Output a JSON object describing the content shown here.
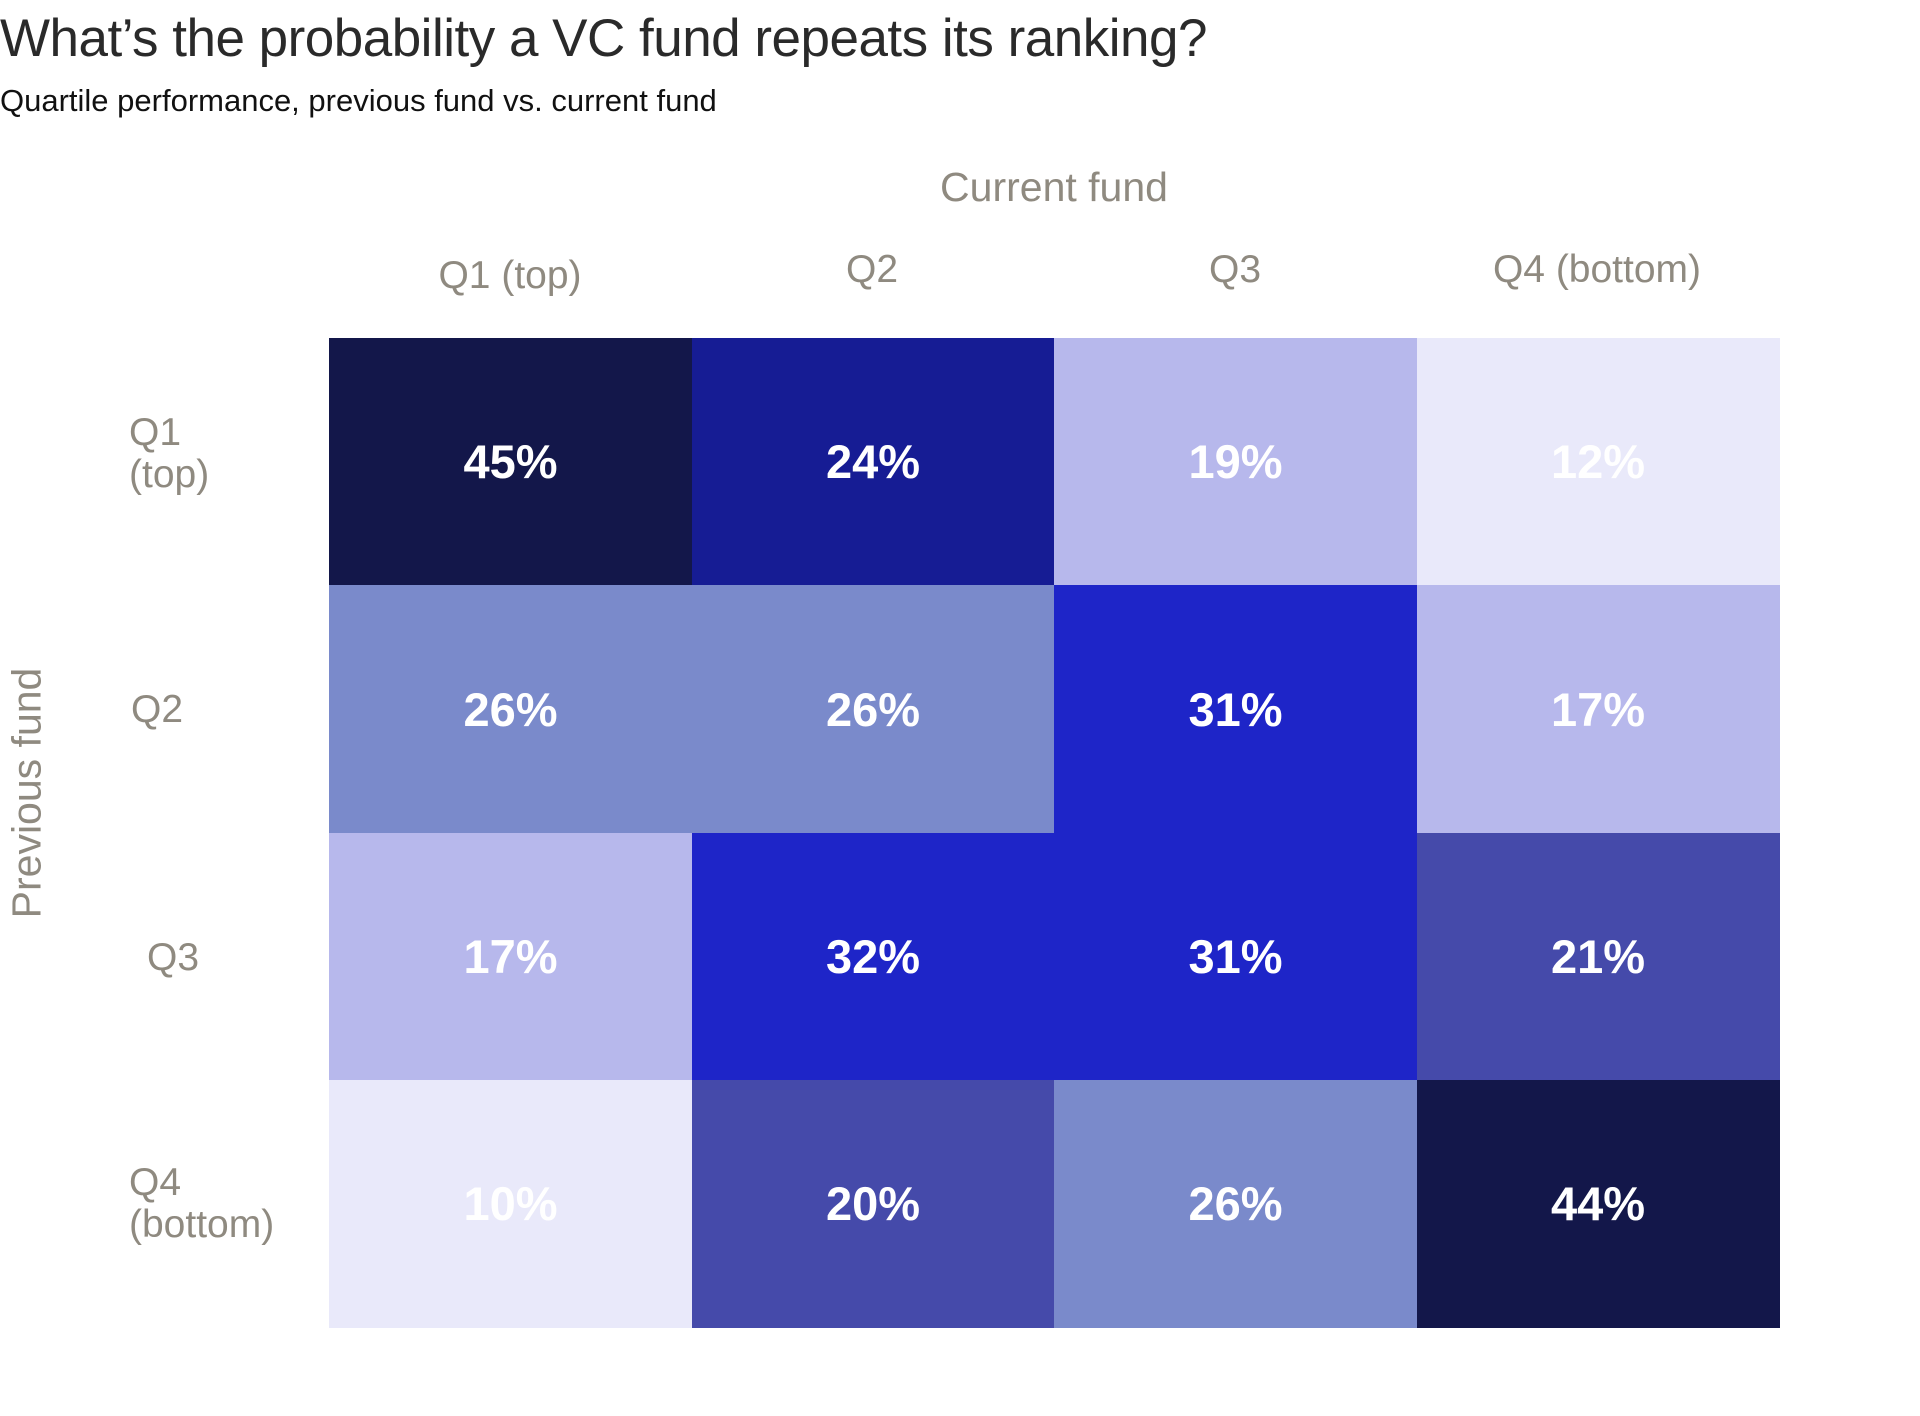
{
  "chart_data": {
    "type": "heatmap",
    "title": "What’s the probability a VC fund repeats its ranking?",
    "subtitle": "Quartile performance, previous fund vs. current fund",
    "xlabel": "Current fund",
    "ylabel": "Previous fund",
    "columns": [
      "Q1 (top)",
      "Q2",
      "Q3",
      "Q4 (bottom)"
    ],
    "rows": [
      "Q1\n(top)",
      "Q2",
      "Q3",
      "Q4\n(bottom)"
    ],
    "values": [
      [
        45,
        24,
        19,
        12
      ],
      [
        26,
        26,
        31,
        17
      ],
      [
        17,
        32,
        31,
        21
      ],
      [
        10,
        20,
        26,
        44
      ]
    ],
    "value_suffix": "%",
    "colors": [
      "#13174a",
      "#161c94",
      "#1e25c8",
      "#454aaa",
      "#7a8acb",
      "#b7b8ec",
      "#e9e9fa"
    ]
  }
}
